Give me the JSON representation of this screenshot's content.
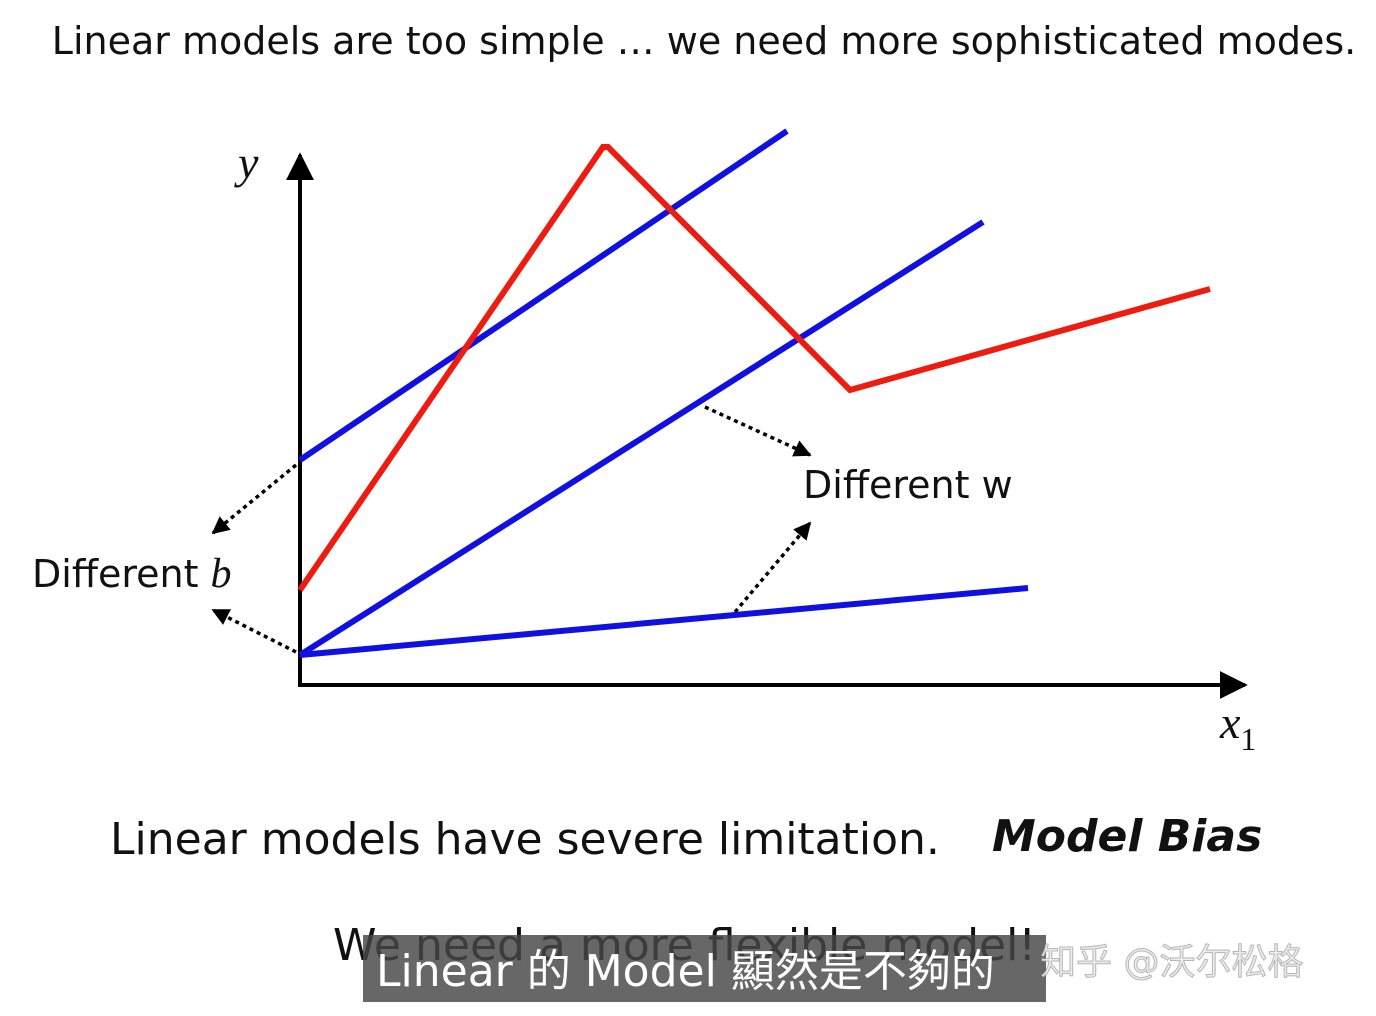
{
  "slide": {
    "title": "Linear models are too simple … we need more sophisticated modes.",
    "diagram": {
      "y_axis_label": "y",
      "x_axis_label": {
        "base": "x",
        "subscript": "1"
      },
      "different_b": {
        "text": "Different",
        "variable": "b"
      },
      "different_w": "Different w"
    },
    "statement": "Linear models have severe limitation.",
    "keyword": "Model Bias",
    "conclusion": "We need a more flexible model!"
  },
  "overlay": {
    "subtitle": "Linear 的 Model 顯然是不夠的",
    "watermark": "知乎 @沃尔松格"
  }
}
